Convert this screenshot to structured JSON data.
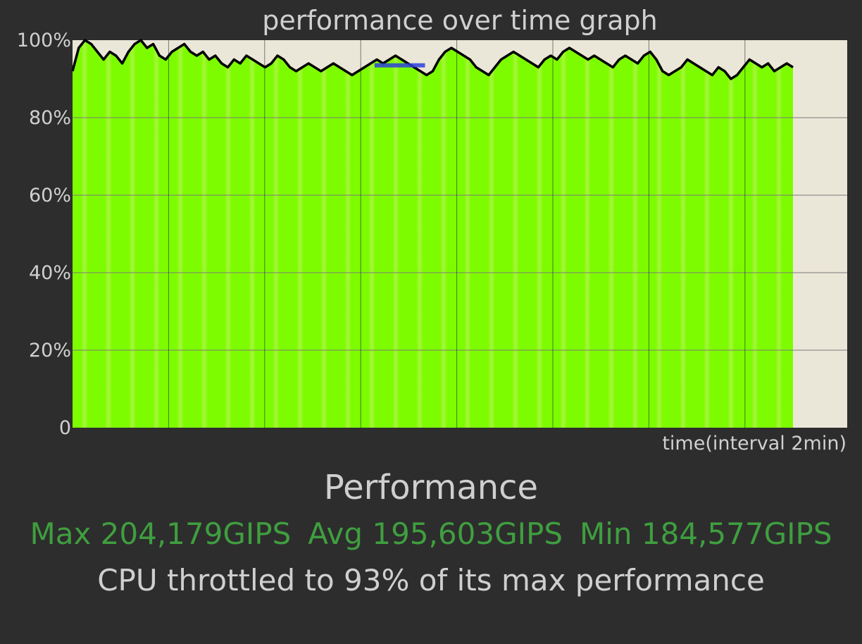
{
  "chart_data": {
    "type": "area",
    "title": "performance over time graph",
    "xlabel": "time(interval 2min)",
    "ylabel": "",
    "ylim": [
      0,
      100
    ],
    "y_ticks": [
      "0",
      "20%",
      "40%",
      "60%",
      "80%",
      "100%"
    ],
    "x_intervals": 8,
    "data_fraction_of_axis": 0.93,
    "grid": true,
    "colors": {
      "area_fill": "#7dfc00",
      "area_stripe": "#a8f53d",
      "line": "#000000",
      "highlight": "#2d3fd8",
      "plot_background": "#ebe7d8",
      "grid": "#7a7a7a"
    },
    "series": [
      {
        "values": [
          92,
          98,
          100,
          99,
          97,
          95,
          97,
          96,
          94,
          97,
          99,
          100,
          98,
          99,
          96,
          95,
          97,
          98,
          99,
          97,
          96,
          97,
          95,
          96,
          94,
          93,
          95,
          94,
          96,
          95,
          94,
          93,
          94,
          96,
          95,
          93,
          92,
          93,
          94,
          93,
          92,
          93,
          94,
          93,
          92,
          91,
          92,
          93,
          94,
          95,
          94,
          95,
          96,
          95,
          94,
          93,
          92,
          91,
          92,
          95,
          97,
          98,
          97,
          96,
          95,
          93,
          92,
          91,
          93,
          95,
          96,
          97,
          96,
          95,
          94,
          93,
          95,
          96,
          95,
          97,
          98,
          97,
          96,
          95,
          96,
          95,
          94,
          93,
          95,
          96,
          95,
          94,
          96,
          97,
          95,
          92,
          91,
          92,
          93,
          95,
          94,
          93,
          92,
          91,
          93,
          92,
          90,
          91,
          93,
          95,
          94,
          93,
          94,
          92,
          93,
          94,
          93
        ]
      },
      {
        "name": "",
        "x_range_fraction": [
          0.39,
          0.455
        ],
        "values": [
          93.5,
          93.5
        ]
      }
    ]
  },
  "performance": {
    "heading": "Performance",
    "max": "Max 204,179GIPS",
    "avg": "Avg 195,603GIPS",
    "min": "Min 184,577GIPS",
    "throttle": "CPU throttled to 93% of its max performance"
  }
}
